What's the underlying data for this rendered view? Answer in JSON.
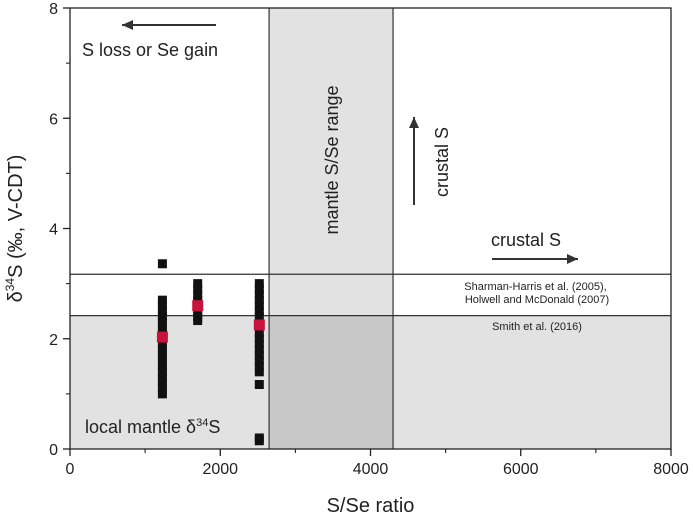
{
  "chart_data": {
    "type": "scatter",
    "title": "",
    "xlabel": "S/Se ratio",
    "ylabel_parts": {
      "pre": "δ",
      "sup": "34",
      "post": "S (‰, V-CDT)"
    },
    "xlim": [
      0,
      8000
    ],
    "ylim": [
      0,
      8
    ],
    "x_ticks": [
      0,
      2000,
      4000,
      6000,
      8000
    ],
    "y_ticks": [
      0,
      2,
      4,
      6,
      8
    ],
    "grid": false,
    "regions": {
      "mantle_se_range": {
        "x": [
          2650,
          4300
        ],
        "label": "mantle S/Se range",
        "color": "#e2e2e2",
        "overlap_color": "#c8c8c8"
      },
      "local_mantle": {
        "y": [
          0,
          2.42
        ],
        "label_pre": "local mantle δ",
        "label_sup": "34",
        "label_post": "S",
        "color": "#e2e2e2"
      }
    },
    "reference_lines": [
      {
        "y": 3.17,
        "label_lines": [
          "Sharman-Harris et al. (2005),",
          "Holwell and McDonald (2007)"
        ]
      },
      {
        "y": 2.42,
        "label_lines": [
          "Smith et al. (2016)"
        ]
      }
    ],
    "annotations": {
      "s_loss": "S loss or Se gain",
      "crustal_up": "crustal S",
      "crustal_right": "crustal S"
    },
    "series": [
      {
        "marker": "square",
        "color": "#111111",
        "points": [
          {
            "x": 1230,
            "y": 3.36
          },
          {
            "x": 1230,
            "y": 2.7
          },
          {
            "x": 1230,
            "y": 2.6
          },
          {
            "x": 1230,
            "y": 2.5
          },
          {
            "x": 1230,
            "y": 2.4
          },
          {
            "x": 1230,
            "y": 2.3
          },
          {
            "x": 1230,
            "y": 2.2
          },
          {
            "x": 1230,
            "y": 2.1
          },
          {
            "x": 1230,
            "y": 1.9
          },
          {
            "x": 1230,
            "y": 1.8
          },
          {
            "x": 1230,
            "y": 1.7
          },
          {
            "x": 1230,
            "y": 1.6
          },
          {
            "x": 1230,
            "y": 1.5
          },
          {
            "x": 1230,
            "y": 1.4
          },
          {
            "x": 1230,
            "y": 1.3
          },
          {
            "x": 1230,
            "y": 1.2
          },
          {
            "x": 1230,
            "y": 1.1
          },
          {
            "x": 1230,
            "y": 1.0
          },
          {
            "x": 1700,
            "y": 3.0
          },
          {
            "x": 1700,
            "y": 2.9
          },
          {
            "x": 1700,
            "y": 2.8
          },
          {
            "x": 1700,
            "y": 2.7
          },
          {
            "x": 1700,
            "y": 2.5
          },
          {
            "x": 1700,
            "y": 2.4
          },
          {
            "x": 1700,
            "y": 2.33
          },
          {
            "x": 2520,
            "y": 3.0
          },
          {
            "x": 2520,
            "y": 2.9
          },
          {
            "x": 2520,
            "y": 2.8
          },
          {
            "x": 2520,
            "y": 2.7
          },
          {
            "x": 2520,
            "y": 2.6
          },
          {
            "x": 2520,
            "y": 2.5
          },
          {
            "x": 2520,
            "y": 2.4
          },
          {
            "x": 2520,
            "y": 2.1
          },
          {
            "x": 2520,
            "y": 2.0
          },
          {
            "x": 2520,
            "y": 1.9
          },
          {
            "x": 2520,
            "y": 1.8
          },
          {
            "x": 2520,
            "y": 1.7
          },
          {
            "x": 2520,
            "y": 1.6
          },
          {
            "x": 2520,
            "y": 1.5
          },
          {
            "x": 2520,
            "y": 1.4
          },
          {
            "x": 2520,
            "y": 1.17
          },
          {
            "x": 2520,
            "y": 0.2
          },
          {
            "x": 2520,
            "y": 0.15
          }
        ]
      },
      {
        "marker": "square",
        "color": "#c8143c",
        "points": [
          {
            "x": 1230,
            "y": 2.03
          },
          {
            "x": 1700,
            "y": 2.6
          },
          {
            "x": 2520,
            "y": 2.25
          }
        ]
      }
    ]
  }
}
